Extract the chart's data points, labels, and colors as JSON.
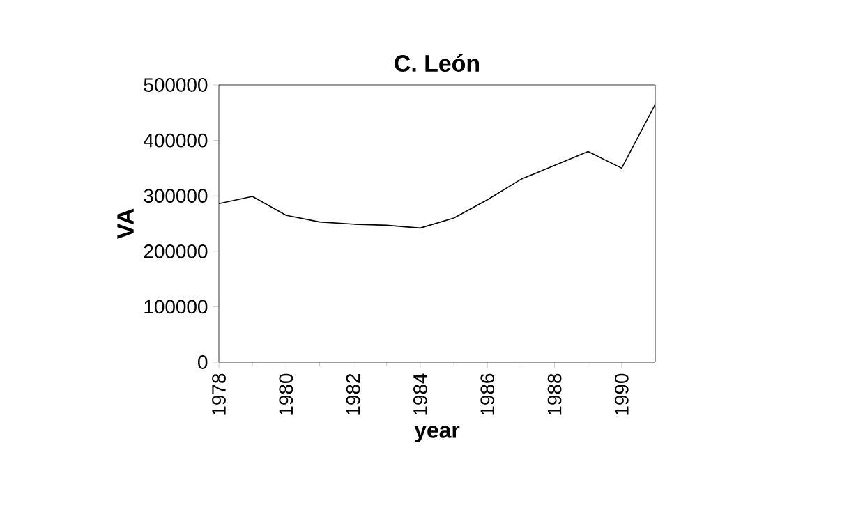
{
  "chart_data": {
    "type": "line",
    "title": "C. León",
    "xlabel": "year",
    "ylabel": "VA",
    "x": [
      1978,
      1979,
      1980,
      1981,
      1982,
      1983,
      1984,
      1985,
      1986,
      1987,
      1988,
      1989,
      1990,
      1991
    ],
    "values": [
      286000,
      299000,
      265000,
      253000,
      249000,
      247000,
      242000,
      260000,
      293000,
      330000,
      355000,
      380000,
      350000,
      465000
    ],
    "color": "#000000",
    "xlim": [
      1978,
      1991
    ],
    "xticks": [
      1978,
      1980,
      1982,
      1984,
      1986,
      1988,
      1990
    ],
    "ylim": [
      0,
      500000
    ],
    "yticks": [
      0,
      100000,
      200000,
      300000,
      400000,
      500000
    ],
    "marker": "none",
    "line_style": "solid"
  }
}
